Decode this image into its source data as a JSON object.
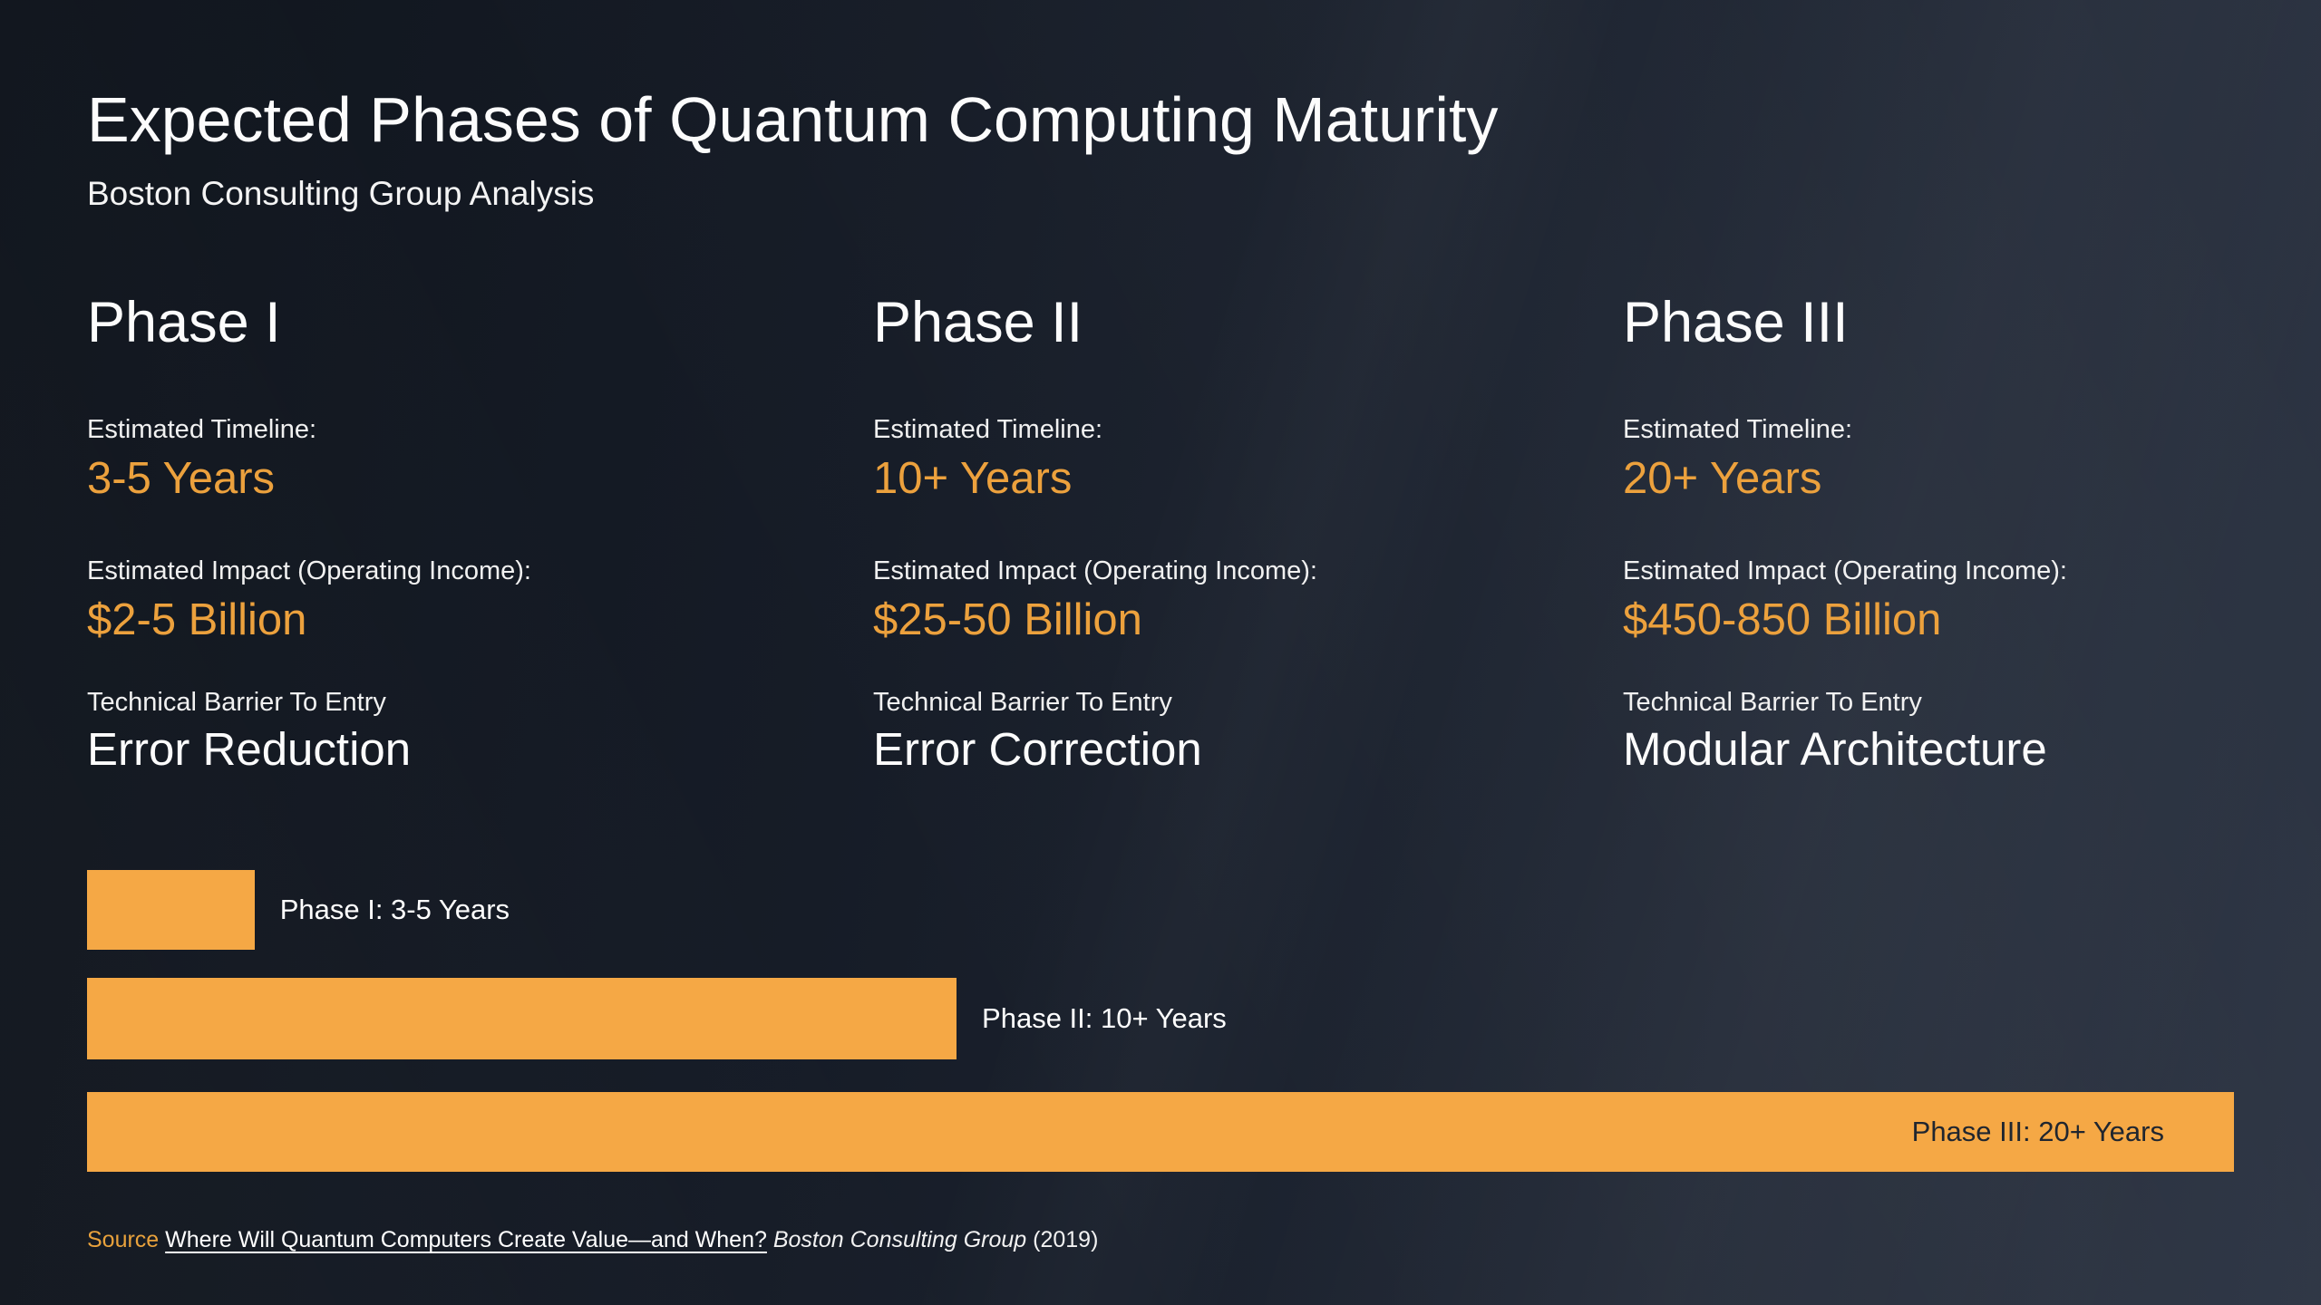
{
  "slide": {
    "title": "Expected Phases of Quantum Computing Maturity",
    "subtitle": "Boston Consulting Group Analysis"
  },
  "phases": [
    {
      "name": "Phase I",
      "timeline_label": "Estimated Timeline:",
      "timeline_value": "3-5 Years",
      "impact_label": "Estimated Impact (Operating Income):",
      "impact_value": "$2-5 Billion",
      "barrier_label": "Technical Barrier To Entry",
      "barrier_value": "Error Reduction"
    },
    {
      "name": "Phase II",
      "timeline_label": "Estimated Timeline:",
      "timeline_value": "10+ Years",
      "impact_label": "Estimated Impact (Operating Income):",
      "impact_value": "$25-50 Billion",
      "barrier_label": "Technical Barrier To Entry",
      "barrier_value": "Error Correction"
    },
    {
      "name": "Phase III",
      "timeline_label": "Estimated Timeline:",
      "timeline_value": "20+ Years",
      "impact_label": "Estimated Impact (Operating Income):",
      "impact_value": "$450-850 Billion",
      "barrier_label": "Technical Barrier To Entry",
      "barrier_value": "Modular Architecture"
    }
  ],
  "chart_data": {
    "type": "bar",
    "orientation": "horizontal",
    "title": "",
    "categories": [
      "Phase I",
      "Phase II",
      "Phase III"
    ],
    "values": [
      "3-5",
      "10+",
      "20+"
    ],
    "unit": "Years",
    "bars": [
      {
        "label": "Phase I: 3-5 Years",
        "width_pct": 7.8,
        "label_position": "outside"
      },
      {
        "label": "Phase II: 10+ Years",
        "width_pct": 40.5,
        "label_position": "outside"
      },
      {
        "label": "Phase III: 20+ Years",
        "width_pct": 100,
        "label_position": "inside"
      }
    ],
    "bar_color": "#F5A845",
    "outside_label_color": "#FFFFFF",
    "inside_label_color": "#20262F",
    "gridlines": false,
    "legend": false,
    "axis_labels": "none"
  },
  "source": {
    "prefix": "Source",
    "reference_title": "Where Will Quantum Computers Create Value—and When?",
    "publisher": "Boston Consulting Group",
    "year": "(2019)"
  },
  "colors": {
    "background_dark": "#10151d",
    "background_light": "#2b3342",
    "accent_orange_bar": "#F5A845",
    "accent_orange_text": "#ECA13D",
    "text_white": "#FCFCFC"
  }
}
